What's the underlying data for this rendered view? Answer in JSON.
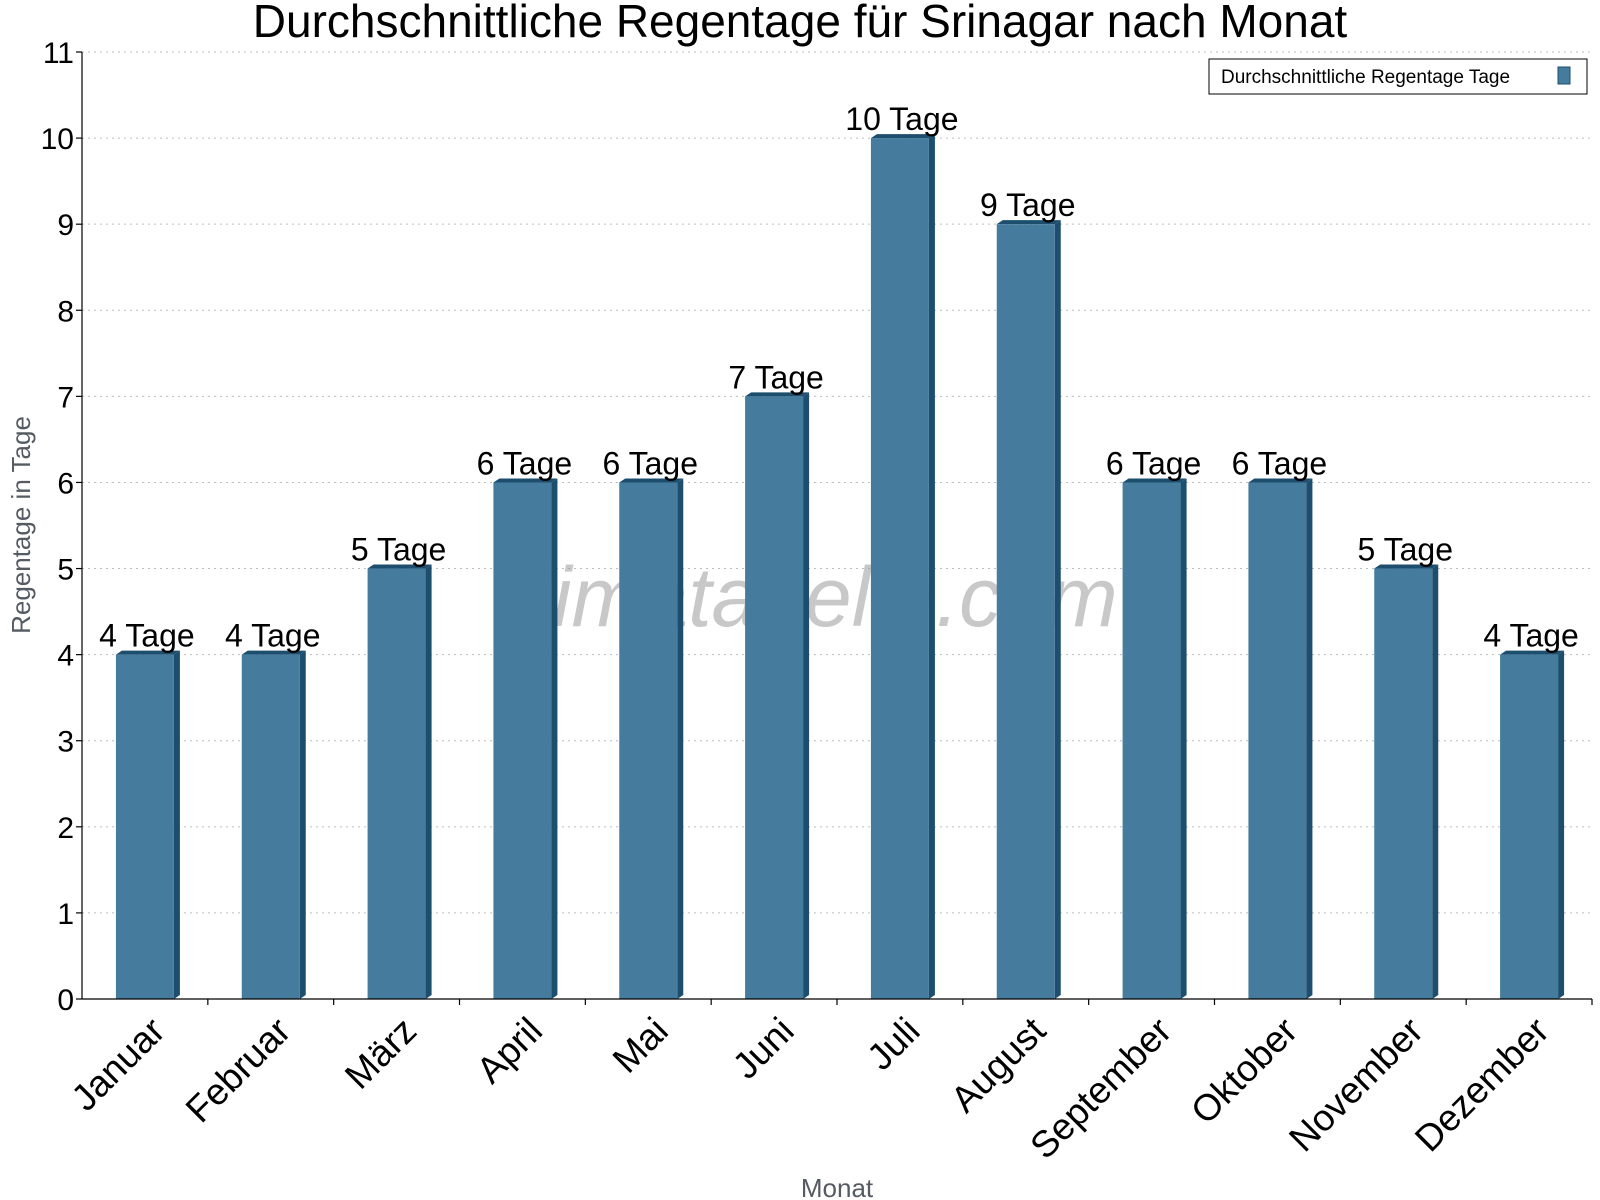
{
  "chart_data": {
    "type": "bar",
    "title": "Durchschnittliche Regentage für Srinagar nach Monat",
    "xlabel": "Monat",
    "ylabel": "Regentage in Tage",
    "categories": [
      "Januar",
      "Februar",
      "März",
      "April",
      "Mai",
      "Juni",
      "Juli",
      "August",
      "September",
      "Oktober",
      "November",
      "Dezember"
    ],
    "series": [
      {
        "name": "Durchschnittliche Regentage Tage",
        "values": [
          4,
          4,
          5,
          6,
          6,
          7,
          10,
          9,
          6,
          6,
          5,
          4
        ]
      }
    ],
    "data_labels": [
      "4 Tage",
      "4 Tage",
      "5 Tage",
      "6 Tage",
      "6 Tage",
      "7 Tage",
      "10 Tage",
      "9 Tage",
      "6 Tage",
      "6 Tage",
      "5 Tage",
      "4 Tage"
    ],
    "ylim": [
      0,
      11
    ],
    "yticks": [
      0,
      1,
      2,
      3,
      4,
      5,
      6,
      7,
      8,
      9,
      10,
      11
    ],
    "grid": true,
    "legend_position": "top-right",
    "bar_color": "#457b9d",
    "bar_side_color": "#1d4e6e",
    "watermark": "klimatabelle.com"
  }
}
